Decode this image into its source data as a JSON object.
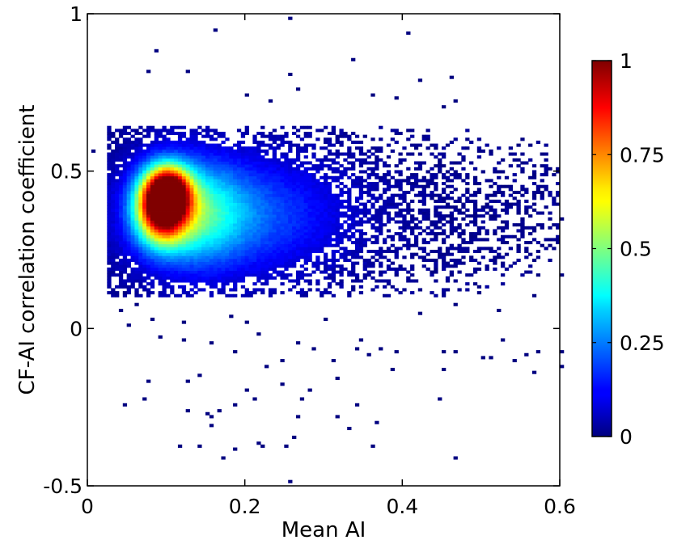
{
  "chart_data": {
    "type": "heatmap",
    "title": "",
    "xlabel": "Mean AI",
    "ylabel": "CF-AI correlation coefficient",
    "xlim": [
      0,
      0.6
    ],
    "ylim": [
      -0.5,
      1
    ],
    "x_ticks": [
      {
        "value": 0,
        "label": "0"
      },
      {
        "value": 0.2,
        "label": "0.2"
      },
      {
        "value": 0.4,
        "label": "0.4"
      },
      {
        "value": 0.6,
        "label": "0.6"
      }
    ],
    "y_ticks": [
      {
        "value": -0.5,
        "label": "-0.5"
      },
      {
        "value": 0,
        "label": "0"
      },
      {
        "value": 0.5,
        "label": "0.5"
      },
      {
        "value": 1,
        "label": "1"
      }
    ],
    "colorbar": {
      "colormap": "jet",
      "range": [
        0,
        1
      ],
      "ticks": [
        {
          "value": 0,
          "label": "0"
        },
        {
          "value": 0.25,
          "label": "0.25"
        },
        {
          "value": 0.5,
          "label": "0.5"
        },
        {
          "value": 0.75,
          "label": "0.75"
        },
        {
          "value": 1,
          "label": "1"
        }
      ]
    },
    "density_clusters": [
      {
        "x": 0.095,
        "y": 0.39,
        "sx": 0.022,
        "sy": 0.075,
        "weight": 1.0
      },
      {
        "x": 0.105,
        "y": 0.44,
        "sx": 0.018,
        "sy": 0.05,
        "weight": 0.55
      },
      {
        "x": 0.13,
        "y": 0.37,
        "sx": 0.045,
        "sy": 0.11,
        "weight": 0.35
      },
      {
        "x": 0.2,
        "y": 0.36,
        "sx": 0.09,
        "sy": 0.13,
        "weight": 0.2
      }
    ],
    "density_bounds": {
      "x": [
        0.025,
        0.6
      ],
      "y": [
        0.1,
        0.64
      ]
    },
    "outlier_points": [
      [
        0.16,
        0.95
      ],
      [
        0.255,
        0.99
      ],
      [
        0.405,
        0.94
      ],
      [
        0.085,
        0.88
      ],
      [
        0.078,
        0.82
      ],
      [
        0.125,
        0.82
      ],
      [
        0.255,
        0.81
      ],
      [
        0.335,
        0.85
      ],
      [
        0.36,
        0.74
      ],
      [
        0.42,
        0.79
      ],
      [
        0.265,
        0.76
      ],
      [
        0.46,
        0.8
      ],
      [
        0.2,
        0.74
      ],
      [
        0.39,
        0.73
      ],
      [
        0.47,
        0.72
      ],
      [
        0.45,
        0.7
      ],
      [
        0.23,
        0.72
      ],
      [
        0.55,
        0.6
      ],
      [
        0.545,
        0.58
      ],
      [
        0.505,
        0.58
      ],
      [
        0.51,
        0.55
      ],
      [
        0.545,
        0.54
      ],
      [
        0.58,
        0.55
      ],
      [
        0.59,
        0.51
      ],
      [
        0.49,
        0.48
      ],
      [
        0.53,
        0.45
      ],
      [
        0.55,
        0.42
      ],
      [
        0.58,
        0.43
      ],
      [
        0.6,
        0.35
      ],
      [
        0.585,
        0.28
      ],
      [
        0.57,
        0.22
      ],
      [
        0.005,
        0.56
      ],
      [
        0.025,
        0.14
      ],
      [
        0.035,
        0.2
      ],
      [
        0.045,
        0.11
      ],
      [
        0.06,
        0.08
      ],
      [
        0.04,
        0.06
      ],
      [
        0.05,
        0.01
      ],
      [
        0.08,
        0.03
      ],
      [
        0.09,
        -0.03
      ],
      [
        0.12,
        0.02
      ],
      [
        0.12,
        -0.04
      ],
      [
        0.155,
        -0.05
      ],
      [
        0.18,
        0.04
      ],
      [
        0.2,
        0.02
      ],
      [
        0.215,
        -0.02
      ],
      [
        0.185,
        -0.07
      ],
      [
        0.245,
        -0.1
      ],
      [
        0.265,
        -0.05
      ],
      [
        0.29,
        -0.06
      ],
      [
        0.3,
        0.03
      ],
      [
        0.31,
        -0.1
      ],
      [
        0.345,
        -0.04
      ],
      [
        0.34,
        -0.06
      ],
      [
        0.355,
        -0.08
      ],
      [
        0.37,
        -0.06
      ],
      [
        0.39,
        -0.07
      ],
      [
        0.42,
        0.05
      ],
      [
        0.45,
        -0.07
      ],
      [
        0.47,
        -0.07
      ],
      [
        0.5,
        -0.09
      ],
      [
        0.51,
        -0.09
      ],
      [
        0.525,
        -0.04
      ],
      [
        0.54,
        -0.1
      ],
      [
        0.555,
        -0.08
      ],
      [
        0.57,
        -0.14
      ],
      [
        0.575,
        -0.07
      ],
      [
        0.6,
        -0.12
      ],
      [
        0.6,
        -0.07
      ],
      [
        0.45,
        -0.13
      ],
      [
        0.125,
        -0.17
      ],
      [
        0.145,
        -0.15
      ],
      [
        0.128,
        -0.26
      ],
      [
        0.15,
        -0.27
      ],
      [
        0.155,
        -0.28
      ],
      [
        0.155,
        -0.31
      ],
      [
        0.165,
        -0.26
      ],
      [
        0.185,
        -0.24
      ],
      [
        0.2,
        -0.2
      ],
      [
        0.21,
        -0.22
      ],
      [
        0.225,
        -0.12
      ],
      [
        0.245,
        -0.18
      ],
      [
        0.265,
        -0.28
      ],
      [
        0.27,
        -0.22
      ],
      [
        0.285,
        -0.2
      ],
      [
        0.315,
        -0.16
      ],
      [
        0.33,
        -0.32
      ],
      [
        0.075,
        -0.17
      ],
      [
        0.07,
        -0.22
      ],
      [
        0.045,
        -0.24
      ],
      [
        0.115,
        -0.37
      ],
      [
        0.14,
        -0.37
      ],
      [
        0.185,
        -0.38
      ],
      [
        0.215,
        -0.36
      ],
      [
        0.25,
        -0.37
      ],
      [
        0.26,
        -0.35
      ],
      [
        0.36,
        -0.37
      ],
      [
        0.17,
        -0.41
      ],
      [
        0.22,
        -0.37
      ],
      [
        0.34,
        -0.24
      ],
      [
        0.315,
        -0.28
      ],
      [
        0.465,
        -0.41
      ],
      [
        0.255,
        -0.49
      ],
      [
        0.445,
        -0.22
      ],
      [
        0.365,
        -0.3
      ],
      [
        0.385,
        -0.13
      ],
      [
        0.47,
        0.08
      ],
      [
        0.52,
        0.06
      ],
      [
        0.57,
        0.1
      ],
      [
        0.6,
        0.17
      ]
    ],
    "series": []
  }
}
